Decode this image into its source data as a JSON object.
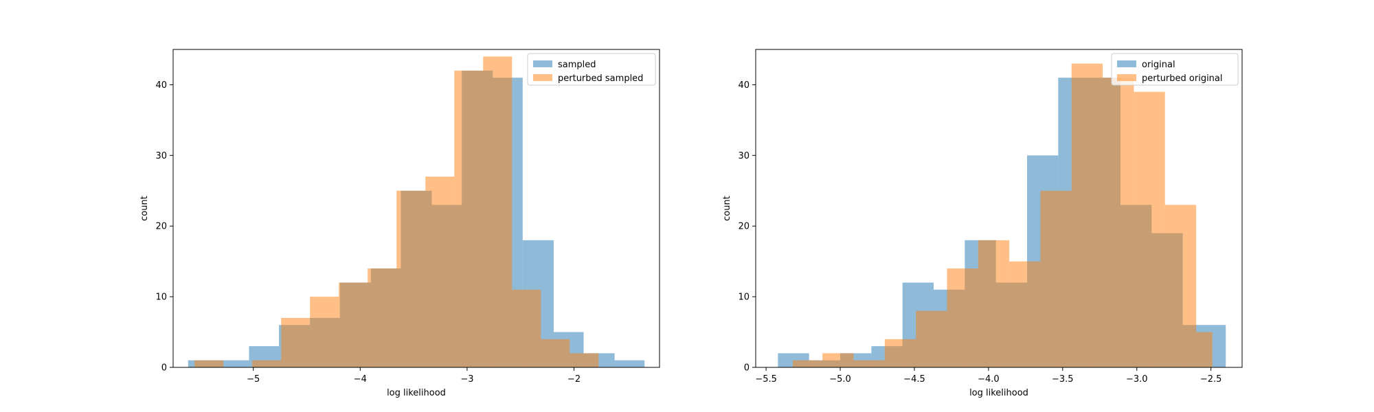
{
  "chart_data": [
    {
      "type": "histogram",
      "title": "",
      "xlabel": "log likelihood",
      "ylabel": "count",
      "xlim": [
        -5.75,
        -1.2
      ],
      "ylim": [
        0,
        45
      ],
      "xticks": [
        -5,
        -4,
        -3,
        -2
      ],
      "xtick_labels": [
        "−5",
        "−4",
        "−3",
        "−2"
      ],
      "yticks": [
        0,
        10,
        20,
        30,
        40
      ],
      "ytick_labels": [
        "0",
        "10",
        "20",
        "30",
        "40"
      ],
      "legend_position": "top-right",
      "grid": false,
      "series": [
        {
          "name": "sampled",
          "color": "#1f77b4",
          "alpha": 0.5,
          "bins": [
            {
              "x0": -5.61,
              "x1": -5.04,
              "count": 1
            },
            {
              "x0": -5.04,
              "x1": -4.76,
              "count": 3
            },
            {
              "x0": -4.76,
              "x1": -4.47,
              "count": 6
            },
            {
              "x0": -4.47,
              "x1": -4.19,
              "count": 7
            },
            {
              "x0": -4.19,
              "x1": -3.9,
              "count": 12
            },
            {
              "x0": -3.9,
              "x1": -3.62,
              "count": 14
            },
            {
              "x0": -3.62,
              "x1": -3.33,
              "count": 25
            },
            {
              "x0": -3.33,
              "x1": -3.05,
              "count": 23
            },
            {
              "x0": -3.05,
              "x1": -2.76,
              "count": 42
            },
            {
              "x0": -2.76,
              "x1": -2.48,
              "count": 41
            },
            {
              "x0": -2.48,
              "x1": -2.19,
              "count": 18
            },
            {
              "x0": -2.19,
              "x1": -1.91,
              "count": 5
            },
            {
              "x0": -1.91,
              "x1": -1.62,
              "count": 2
            },
            {
              "x0": -1.62,
              "x1": -1.34,
              "count": 1
            }
          ]
        },
        {
          "name": "perturbed sampled",
          "color": "#ff7f0e",
          "alpha": 0.5,
          "bins": [
            {
              "x0": -5.55,
              "x1": -5.28,
              "count": 1
            },
            {
              "x0": -5.01,
              "x1": -4.74,
              "count": 1
            },
            {
              "x0": -4.74,
              "x1": -4.47,
              "count": 7
            },
            {
              "x0": -4.47,
              "x1": -4.2,
              "count": 10
            },
            {
              "x0": -4.2,
              "x1": -3.93,
              "count": 12
            },
            {
              "x0": -3.93,
              "x1": -3.66,
              "count": 14
            },
            {
              "x0": -3.66,
              "x1": -3.39,
              "count": 25
            },
            {
              "x0": -3.39,
              "x1": -3.12,
              "count": 27
            },
            {
              "x0": -3.12,
              "x1": -2.85,
              "count": 42
            },
            {
              "x0": -2.85,
              "x1": -2.58,
              "count": 44
            },
            {
              "x0": -2.58,
              "x1": -2.31,
              "count": 11
            },
            {
              "x0": -2.31,
              "x1": -2.04,
              "count": 4
            },
            {
              "x0": -2.04,
              "x1": -1.77,
              "count": 2
            }
          ]
        }
      ]
    },
    {
      "type": "histogram",
      "title": "",
      "xlabel": "log likelihood",
      "ylabel": "count",
      "xlim": [
        -5.57,
        -2.29
      ],
      "ylim": [
        0,
        45
      ],
      "xticks": [
        -5.5,
        -5.0,
        -4.5,
        -4.0,
        -3.5,
        -3.0,
        -2.5
      ],
      "xtick_labels": [
        "−5.5",
        "−5.0",
        "−4.5",
        "−4.0",
        "−3.5",
        "−3.0",
        "−2.5"
      ],
      "yticks": [
        0,
        10,
        20,
        30,
        40
      ],
      "ytick_labels": [
        "0",
        "10",
        "20",
        "30",
        "40"
      ],
      "legend_position": "top-right",
      "grid": false,
      "series": [
        {
          "name": "original",
          "color": "#1f77b4",
          "alpha": 0.5,
          "bins": [
            {
              "x0": -5.42,
              "x1": -5.21,
              "count": 2
            },
            {
              "x0": -5.21,
              "x1": -5.0,
              "count": 1
            },
            {
              "x0": -5.0,
              "x1": -4.79,
              "count": 2
            },
            {
              "x0": -4.79,
              "x1": -4.58,
              "count": 3
            },
            {
              "x0": -4.58,
              "x1": -4.37,
              "count": 12
            },
            {
              "x0": -4.37,
              "x1": -4.16,
              "count": 11
            },
            {
              "x0": -4.16,
              "x1": -3.95,
              "count": 18
            },
            {
              "x0": -3.95,
              "x1": -3.74,
              "count": 12
            },
            {
              "x0": -3.74,
              "x1": -3.53,
              "count": 30
            },
            {
              "x0": -3.53,
              "x1": -3.32,
              "count": 41
            },
            {
              "x0": -3.32,
              "x1": -3.11,
              "count": 41
            },
            {
              "x0": -3.11,
              "x1": -2.9,
              "count": 23
            },
            {
              "x0": -2.9,
              "x1": -2.69,
              "count": 19
            },
            {
              "x0": -2.69,
              "x1": -2.48,
              "count": 6
            },
            {
              "x0": -2.48,
              "x1": -2.4,
              "count": 6
            }
          ]
        },
        {
          "name": "perturbed original",
          "color": "#ff7f0e",
          "alpha": 0.5,
          "bins": [
            {
              "x0": -5.32,
              "x1": -5.12,
              "count": 1
            },
            {
              "x0": -5.12,
              "x1": -4.91,
              "count": 2
            },
            {
              "x0": -4.91,
              "x1": -4.7,
              "count": 1
            },
            {
              "x0": -4.7,
              "x1": -4.49,
              "count": 4
            },
            {
              "x0": -4.49,
              "x1": -4.28,
              "count": 8
            },
            {
              "x0": -4.28,
              "x1": -4.07,
              "count": 14
            },
            {
              "x0": -4.07,
              "x1": -3.86,
              "count": 18
            },
            {
              "x0": -3.86,
              "x1": -3.65,
              "count": 15
            },
            {
              "x0": -3.65,
              "x1": -3.44,
              "count": 25
            },
            {
              "x0": -3.44,
              "x1": -3.23,
              "count": 43
            },
            {
              "x0": -3.23,
              "x1": -3.02,
              "count": 41
            },
            {
              "x0": -3.02,
              "x1": -2.81,
              "count": 39
            },
            {
              "x0": -2.81,
              "x1": -2.6,
              "count": 23
            },
            {
              "x0": -2.6,
              "x1": -2.49,
              "count": 5
            }
          ]
        }
      ]
    }
  ]
}
